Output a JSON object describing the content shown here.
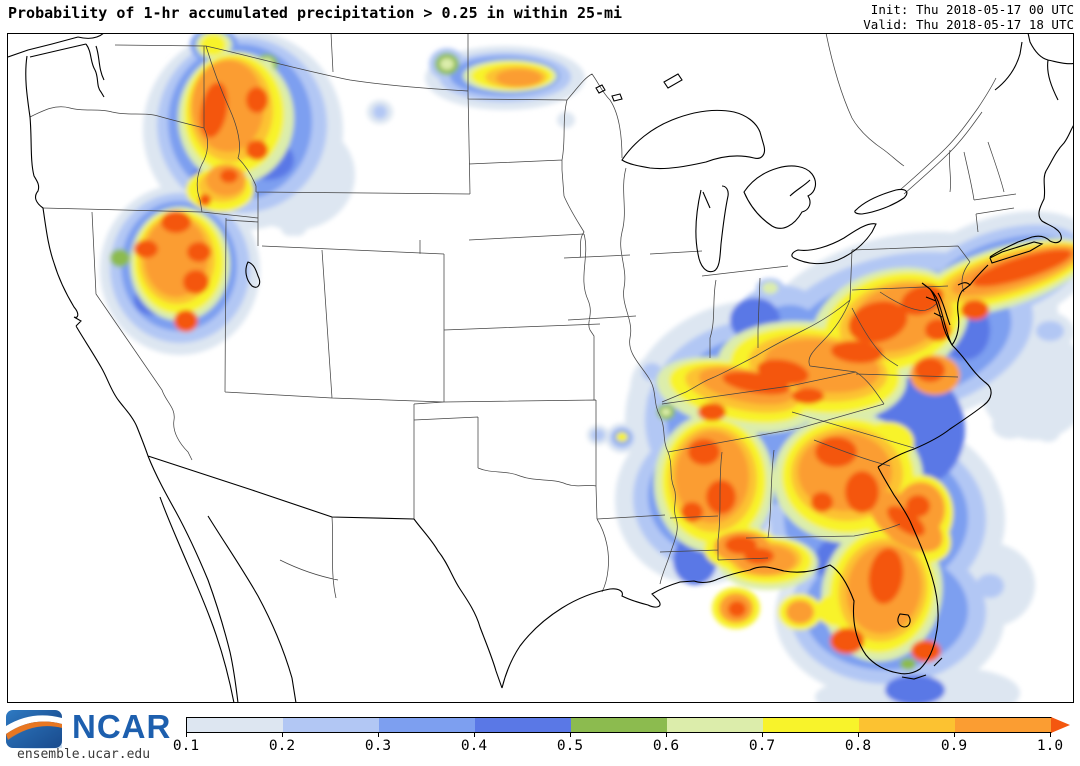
{
  "header": {
    "title": "Probability of 1-hr accumulated precipitation > 0.25 in within 25-mi",
    "init_line": "Init: Thu 2018-05-17 00 UTC",
    "valid_line": "Valid: Thu 2018-05-17 18 UTC"
  },
  "footer": {
    "logo_text": "NCAR",
    "site": "ensemble.ucar.edu"
  },
  "legend": {
    "ticks": [
      "0.1",
      "0.2",
      "0.3",
      "0.4",
      "0.5",
      "0.6",
      "0.7",
      "0.8",
      "0.9",
      "1.0"
    ],
    "segment_colors": [
      "#dde6f1",
      "#b2c7f4",
      "#7d9ff0",
      "#5a78e6",
      "#8cbb4f",
      "#dcedab",
      "#f8f32b",
      "#fcc231",
      "#fb9d32"
    ],
    "arrow_color": "#f4570f"
  },
  "map": {
    "border_color": "#000000",
    "level_colors": [
      "#dde6f1",
      "#b2c7f4",
      "#7d9ff0",
      "#5a78e6",
      "#8cbb4f",
      "#dcedab",
      "#f8f32b",
      "#fcc231",
      "#fb9d32",
      "#f4570f"
    ],
    "level_values": [
      0.1,
      0.2,
      0.3,
      0.4,
      0.5,
      0.6,
      0.7,
      0.8,
      0.9,
      1.0
    ],
    "blobs": [
      [
        1,
        243,
        130,
        100,
        100,
        0
      ],
      [
        1,
        295,
        175,
        60,
        55,
        0
      ],
      [
        2,
        242,
        125,
        85,
        88,
        0
      ],
      [
        3,
        240,
        122,
        72,
        78,
        0
      ],
      [
        4,
        268,
        160,
        26,
        20,
        0
      ],
      [
        4,
        208,
        178,
        16,
        14,
        0
      ],
      [
        6,
        236,
        118,
        58,
        66,
        0
      ],
      [
        7,
        234,
        114,
        50,
        60,
        0
      ],
      [
        8,
        231,
        110,
        42,
        52,
        0
      ],
      [
        9,
        228,
        106,
        36,
        46,
        0
      ],
      [
        10,
        214,
        110,
        13,
        28,
        10
      ],
      [
        10,
        257,
        100,
        11,
        13,
        0
      ],
      [
        10,
        257,
        150,
        11,
        10,
        0
      ],
      [
        9,
        226,
        180,
        20,
        16,
        0
      ],
      [
        10,
        229,
        176,
        9,
        7,
        0
      ],
      [
        7,
        220,
        190,
        34,
        22,
        0
      ],
      [
        8,
        222,
        186,
        24,
        16,
        0
      ],
      [
        10,
        205,
        200,
        6,
        6,
        0
      ],
      [
        3,
        214,
        45,
        24,
        18,
        0
      ],
      [
        6,
        214,
        45,
        18,
        14,
        0
      ],
      [
        7,
        213,
        45,
        13,
        11,
        0
      ],
      [
        2,
        267,
        64,
        17,
        15,
        0
      ],
      [
        5,
        267,
        64,
        11,
        10,
        0
      ],
      [
        6,
        267,
        64,
        6,
        6,
        0
      ],
      [
        1,
        380,
        112,
        13,
        12,
        0
      ],
      [
        2,
        380,
        112,
        7,
        7,
        0
      ],
      [
        1,
        297,
        227,
        10,
        9,
        0
      ],
      [
        1,
        180,
        270,
        80,
        85,
        0
      ],
      [
        2,
        180,
        268,
        70,
        75,
        0
      ],
      [
        3,
        179,
        266,
        58,
        65,
        0
      ],
      [
        4,
        152,
        300,
        18,
        15,
        0
      ],
      [
        4,
        213,
        247,
        14,
        12,
        0
      ],
      [
        6,
        180,
        264,
        50,
        57,
        0
      ],
      [
        7,
        179,
        262,
        45,
        52,
        0
      ],
      [
        8,
        177,
        259,
        38,
        45,
        0
      ],
      [
        9,
        176,
        257,
        32,
        40,
        0
      ],
      [
        10,
        176,
        222,
        15,
        11,
        0
      ],
      [
        10,
        146,
        249,
        12,
        9,
        0
      ],
      [
        10,
        199,
        252,
        12,
        10,
        0
      ],
      [
        10,
        196,
        282,
        13,
        12,
        0
      ],
      [
        10,
        186,
        321,
        12,
        11,
        0
      ],
      [
        5,
        120,
        258,
        10,
        9,
        0
      ],
      [
        1,
        290,
        228,
        9,
        8,
        0
      ],
      [
        1,
        505,
        78,
        80,
        32,
        0
      ],
      [
        2,
        505,
        77,
        66,
        25,
        0
      ],
      [
        3,
        505,
        76,
        55,
        20,
        0
      ],
      [
        6,
        510,
        76,
        47,
        16,
        0
      ],
      [
        7,
        512,
        76,
        41,
        14,
        0
      ],
      [
        8,
        516,
        77,
        31,
        11,
        0
      ],
      [
        9,
        519,
        78,
        23,
        9,
        0
      ],
      [
        2,
        447,
        64,
        18,
        16,
        0
      ],
      [
        5,
        447,
        64,
        12,
        11,
        0
      ],
      [
        6,
        447,
        64,
        7,
        6,
        0
      ],
      [
        1,
        566,
        120,
        9,
        8,
        0
      ],
      [
        1,
        622,
        438,
        16,
        15,
        0
      ],
      [
        2,
        622,
        438,
        12,
        11,
        0
      ],
      [
        3,
        622,
        437,
        9,
        8,
        0
      ],
      [
        7,
        622,
        437,
        6,
        5,
        0
      ],
      [
        1,
        598,
        435,
        11,
        10,
        0
      ],
      [
        2,
        598,
        435,
        7,
        6,
        0
      ],
      [
        1,
        655,
        390,
        25,
        35,
        0
      ],
      [
        2,
        652,
        372,
        10,
        9,
        0
      ],
      [
        2,
        655,
        400,
        8,
        8,
        0
      ],
      [
        5,
        666,
        412,
        9,
        8,
        0
      ],
      [
        6,
        666,
        412,
        5,
        4,
        0
      ],
      [
        1,
        760,
        420,
        135,
        120,
        0
      ],
      [
        1,
        905,
        330,
        155,
        95,
        -12
      ],
      [
        1,
        1000,
        272,
        100,
        55,
        -18
      ],
      [
        1,
        880,
        520,
        125,
        105,
        0
      ],
      [
        1,
        890,
        615,
        115,
        85,
        0
      ],
      [
        1,
        700,
        500,
        85,
        85,
        0
      ],
      [
        1,
        1035,
        385,
        55,
        55,
        0
      ],
      [
        1,
        990,
        585,
        45,
        42,
        0
      ],
      [
        1,
        955,
        693,
        65,
        25,
        0
      ],
      [
        1,
        870,
        697,
        55,
        18,
        0
      ],
      [
        2,
        760,
        420,
        115,
        100,
        0
      ],
      [
        2,
        900,
        335,
        135,
        80,
        -12
      ],
      [
        2,
        1000,
        273,
        88,
        42,
        -18
      ],
      [
        2,
        878,
        520,
        108,
        90,
        0
      ],
      [
        2,
        888,
        612,
        98,
        72,
        0
      ],
      [
        2,
        703,
        498,
        70,
        70,
        0
      ],
      [
        3,
        762,
        420,
        95,
        85,
        0
      ],
      [
        3,
        898,
        338,
        115,
        65,
        -12
      ],
      [
        3,
        1002,
        274,
        75,
        33,
        -18
      ],
      [
        3,
        876,
        518,
        92,
        76,
        0
      ],
      [
        3,
        886,
        610,
        82,
        60,
        0
      ],
      [
        3,
        706,
        496,
        58,
        58,
        0
      ],
      [
        4,
        920,
        430,
        45,
        55,
        0
      ],
      [
        4,
        965,
        330,
        25,
        30,
        0
      ],
      [
        4,
        845,
        560,
        30,
        25,
        0
      ],
      [
        4,
        755,
        320,
        25,
        22,
        0
      ],
      [
        4,
        695,
        560,
        22,
        25,
        0
      ],
      [
        4,
        915,
        690,
        30,
        15,
        0
      ],
      [
        2,
        780,
        320,
        45,
        35,
        0
      ],
      [
        3,
        790,
        330,
        30,
        25,
        0
      ],
      [
        6,
        735,
        395,
        80,
        35,
        12
      ],
      [
        7,
        738,
        392,
        70,
        28,
        12
      ],
      [
        8,
        742,
        389,
        58,
        21,
        12
      ],
      [
        9,
        746,
        386,
        48,
        16,
        12
      ],
      [
        10,
        756,
        383,
        34,
        10,
        10
      ],
      [
        10,
        712,
        412,
        14,
        9,
        0
      ],
      [
        6,
        714,
        483,
        60,
        70,
        0
      ],
      [
        7,
        714,
        481,
        52,
        62,
        0
      ],
      [
        8,
        713,
        479,
        44,
        53,
        0
      ],
      [
        9,
        712,
        477,
        37,
        46,
        0
      ],
      [
        10,
        704,
        452,
        16,
        13,
        0
      ],
      [
        10,
        721,
        497,
        15,
        17,
        0
      ],
      [
        10,
        692,
        512,
        11,
        10,
        0
      ],
      [
        7,
        742,
        549,
        38,
        22,
        0
      ],
      [
        9,
        742,
        547,
        28,
        16,
        0
      ],
      [
        10,
        741,
        545,
        16,
        9,
        0
      ],
      [
        7,
        736,
        608,
        24,
        21,
        0
      ],
      [
        9,
        736,
        608,
        17,
        15,
        0
      ],
      [
        10,
        737,
        609,
        9,
        8,
        0
      ],
      [
        6,
        812,
        372,
        95,
        50,
        7
      ],
      [
        7,
        815,
        370,
        85,
        42,
        7
      ],
      [
        8,
        818,
        368,
        70,
        33,
        7
      ],
      [
        9,
        822,
        366,
        58,
        26,
        7
      ],
      [
        10,
        783,
        372,
        26,
        12,
        10
      ],
      [
        10,
        857,
        352,
        26,
        11,
        4
      ],
      [
        10,
        808,
        396,
        16,
        8,
        0
      ],
      [
        6,
        890,
        325,
        80,
        55,
        -17
      ],
      [
        7,
        893,
        322,
        70,
        47,
        -17
      ],
      [
        8,
        896,
        320,
        58,
        38,
        -17
      ],
      [
        9,
        898,
        318,
        48,
        32,
        -17
      ],
      [
        10,
        878,
        322,
        30,
        20,
        -15
      ],
      [
        10,
        922,
        300,
        22,
        14,
        -20
      ],
      [
        10,
        938,
        330,
        13,
        11,
        0
      ],
      [
        9,
        935,
        375,
        25,
        20,
        0
      ],
      [
        10,
        930,
        370,
        15,
        12,
        0
      ],
      [
        6,
        1002,
        278,
        92,
        30,
        -17
      ],
      [
        7,
        1005,
        276,
        85,
        25,
        -17
      ],
      [
        8,
        1010,
        273,
        75,
        20,
        -17
      ],
      [
        9,
        1015,
        271,
        66,
        16,
        -17
      ],
      [
        10,
        1022,
        268,
        52,
        11,
        -17
      ],
      [
        10,
        975,
        310,
        14,
        10,
        0
      ],
      [
        7,
        962,
        300,
        25,
        18,
        0
      ],
      [
        2,
        770,
        288,
        14,
        10,
        0
      ],
      [
        6,
        770,
        288,
        8,
        6,
        0
      ],
      [
        1,
        800,
        300,
        10,
        8,
        0
      ],
      [
        6,
        848,
        478,
        75,
        65,
        0
      ],
      [
        7,
        848,
        476,
        66,
        57,
        0
      ],
      [
        8,
        847,
        474,
        56,
        47,
        0
      ],
      [
        9,
        845,
        472,
        47,
        39,
        0
      ],
      [
        10,
        836,
        452,
        21,
        15,
        0
      ],
      [
        10,
        862,
        492,
        17,
        21,
        0
      ],
      [
        10,
        822,
        502,
        11,
        10,
        0
      ],
      [
        7,
        905,
        524,
        52,
        30,
        35
      ],
      [
        9,
        906,
        522,
        42,
        22,
        35
      ],
      [
        10,
        906,
        521,
        22,
        10,
        35
      ],
      [
        7,
        888,
        442,
        26,
        20,
        0
      ],
      [
        6,
        882,
        592,
        60,
        70,
        12
      ],
      [
        7,
        882,
        591,
        52,
        62,
        12
      ],
      [
        8,
        883,
        590,
        44,
        52,
        12
      ],
      [
        9,
        884,
        589,
        37,
        45,
        12
      ],
      [
        10,
        886,
        576,
        17,
        28,
        8
      ],
      [
        10,
        847,
        641,
        17,
        13,
        0
      ],
      [
        10,
        926,
        651,
        15,
        11,
        0
      ],
      [
        7,
        920,
        515,
        33,
        40,
        8
      ],
      [
        9,
        920,
        510,
        25,
        28,
        8
      ],
      [
        10,
        918,
        506,
        12,
        11,
        0
      ],
      [
        6,
        768,
        563,
        50,
        27,
        0
      ],
      [
        7,
        768,
        561,
        44,
        23,
        0
      ],
      [
        8,
        766,
        559,
        36,
        18,
        0
      ],
      [
        9,
        766,
        560,
        30,
        15,
        0
      ],
      [
        10,
        759,
        556,
        15,
        8,
        0
      ],
      [
        5,
        908,
        664,
        8,
        6,
        0
      ],
      [
        7,
        836,
        610,
        20,
        16,
        0
      ],
      [
        9,
        800,
        612,
        14,
        12,
        0
      ],
      [
        7,
        800,
        612,
        22,
        18,
        0
      ],
      [
        2,
        990,
        586,
        14,
        12,
        0
      ],
      [
        1,
        1048,
        332,
        26,
        20,
        0
      ],
      [
        2,
        1050,
        331,
        14,
        10,
        0
      ],
      [
        1,
        1010,
        425,
        18,
        14,
        0
      ],
      [
        1,
        1048,
        432,
        12,
        10,
        0
      ],
      [
        1,
        965,
        372,
        14,
        12,
        0
      ]
    ]
  }
}
